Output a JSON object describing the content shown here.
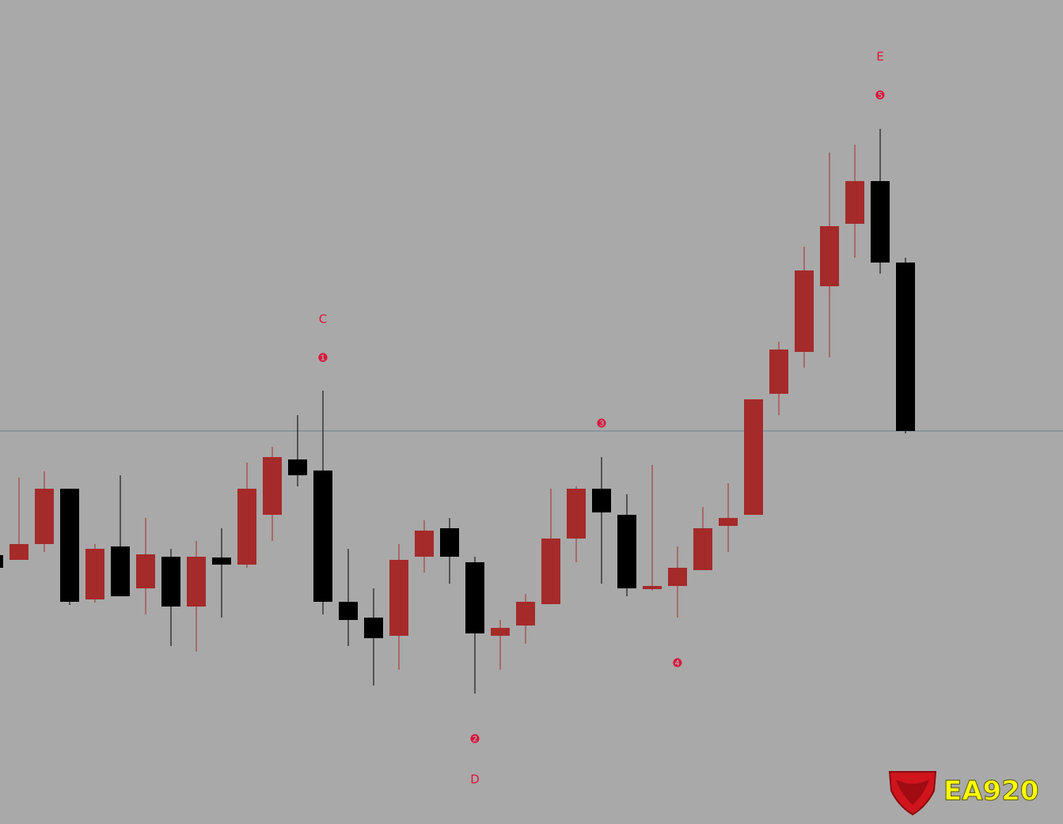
{
  "chart_data": {
    "type": "candlestick",
    "series": {
      "open": [
        340,
        334,
        354,
        424,
        284,
        351,
        298,
        338,
        275,
        337,
        328,
        391,
        461,
        447,
        281,
        261,
        238,
        338,
        374,
        331,
        238,
        251,
        278,
        361,
        424,
        391,
        297,
        301,
        321,
        377,
        391,
        544,
        597,
        680,
        759,
        813,
        710
      ],
      "high": [
        340,
        438,
        446,
        424,
        354,
        441,
        387,
        348,
        358,
        374,
        457,
        477,
        517,
        548,
        348,
        298,
        354,
        384,
        387,
        338,
        258,
        291,
        424,
        427,
        464,
        417,
        454,
        351,
        401,
        431,
        537,
        610,
        730,
        849,
        859,
        879,
        716
      ],
      "low": [
        324,
        334,
        344,
        277,
        280,
        288,
        265,
        225,
        218,
        261,
        324,
        358,
        427,
        265,
        225,
        175,
        195,
        318,
        304,
        165,
        195,
        228,
        278,
        331,
        304,
        288,
        295,
        261,
        321,
        344,
        391,
        517,
        577,
        590,
        716,
        696,
        494
      ],
      "close": [
        324,
        354,
        424,
        281,
        348,
        288,
        341,
        275,
        338,
        328,
        424,
        464,
        441,
        281,
        258,
        235,
        334,
        371,
        338,
        241,
        248,
        281,
        361,
        424,
        394,
        298,
        301,
        324,
        374,
        387,
        537,
        600,
        700,
        756,
        813,
        710,
        497
      ]
    },
    "up_color": "#a52a2a",
    "down_color": "#000000",
    "ylim": [
      0,
      1042
    ],
    "hline": {
      "value": 497,
      "color": "#6a7f8f"
    },
    "annotations": [
      {
        "text": "C",
        "index": 13,
        "y": 638
      },
      {
        "text": "❶",
        "index": 13,
        "y": 589
      },
      {
        "text": "❷",
        "index": 19,
        "y": 107
      },
      {
        "text": "D",
        "index": 19,
        "y": 56
      },
      {
        "text": "❸",
        "index": 24,
        "y": 506
      },
      {
        "text": "❹",
        "index": 27,
        "y": 203
      },
      {
        "text": "❺",
        "index": 35,
        "y": 921
      },
      {
        "text": "E",
        "index": 35,
        "y": 970
      }
    ],
    "annotation_color": "#dc143c",
    "watermark": "EA920"
  }
}
